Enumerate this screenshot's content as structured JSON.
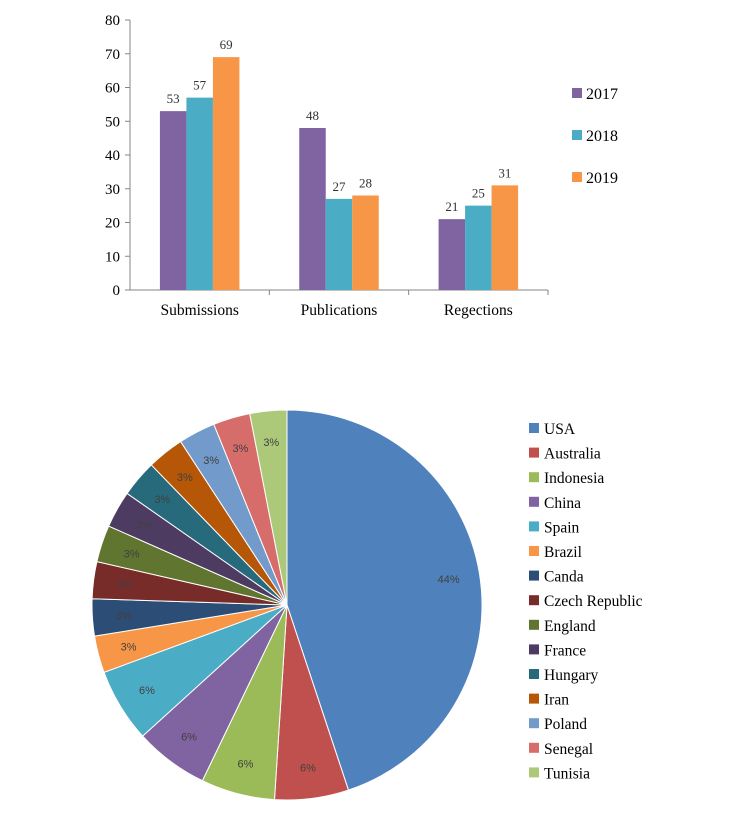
{
  "chart_data": [
    {
      "type": "bar",
      "categories": [
        "Submissions",
        "Publications",
        "Regections"
      ],
      "series": [
        {
          "name": "2017",
          "values": [
            53,
            48,
            21
          ],
          "color": "#8064a2"
        },
        {
          "name": "2018",
          "values": [
            57,
            27,
            25
          ],
          "color": "#4bacc6"
        },
        {
          "name": "2019",
          "values": [
            69,
            28,
            31
          ],
          "color": "#f79646"
        }
      ],
      "ylim": [
        0,
        80
      ],
      "yticks": [
        "0",
        "10",
        "20",
        "30",
        "40",
        "50",
        "60",
        "70",
        "80"
      ],
      "grid": false,
      "legend": "right"
    },
    {
      "type": "pie",
      "legend": "right",
      "slices": [
        {
          "label": "USA",
          "value": 44,
          "text": "44%",
          "color": "#4f81bd"
        },
        {
          "label": "Australia",
          "value": 6,
          "text": "6%",
          "color": "#c0504d"
        },
        {
          "label": "Indonesia",
          "value": 6,
          "text": "6%",
          "color": "#9bbb59"
        },
        {
          "label": "China",
          "value": 6,
          "text": "6%",
          "color": "#8064a2"
        },
        {
          "label": "Spain",
          "value": 6,
          "text": "6%",
          "color": "#4bacc6"
        },
        {
          "label": "Brazil",
          "value": 3,
          "text": "3%",
          "color": "#f79646"
        },
        {
          "label": "Canda",
          "value": 3,
          "text": "3%",
          "color": "#2c4d75"
        },
        {
          "label": "Czech Republic",
          "value": 3,
          "text": "3%",
          "color": "#772c2a"
        },
        {
          "label": "England",
          "value": 3,
          "text": "3%",
          "color": "#5f7530"
        },
        {
          "label": "France",
          "value": 3,
          "text": "3%",
          "color": "#4d3b62"
        },
        {
          "label": "Hungary",
          "value": 3,
          "text": "3%",
          "color": "#276a7c"
        },
        {
          "label": "Iran",
          "value": 3,
          "text": "3%",
          "color": "#b65708"
        },
        {
          "label": "Poland",
          "value": 3,
          "text": "3%",
          "color": "#729aca"
        },
        {
          "label": "Senegal",
          "value": 3,
          "text": "3%",
          "color": "#d66d6b"
        },
        {
          "label": "Tunisia",
          "value": 3,
          "text": "3%",
          "color": "#acc97a"
        }
      ]
    }
  ]
}
